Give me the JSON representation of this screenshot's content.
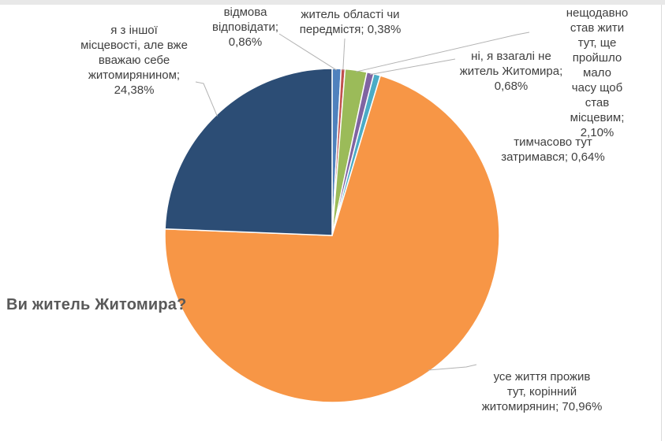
{
  "page": {
    "background": "#ffffff",
    "top_strip_color": "#e8e8e8",
    "right_border_color": "#dcdcdc"
  },
  "title": {
    "text": "Ви житель Житомира?",
    "color": "#595959"
  },
  "chart_data": {
    "type": "pie",
    "title": "Ви житель Житомира?",
    "start_angle_deg": 0,
    "direction": "clockwise",
    "legend": "none",
    "data_labels": "outside-with-leader-lines",
    "label_color": "#3f3f3f",
    "leader_line_color": "#b3b3b3",
    "slice_border_color": "#ffffff",
    "slices": [
      {
        "label": "відмова відповідати",
        "value": 0.86,
        "display": "0,86%",
        "color": "#4F81BD"
      },
      {
        "label": "житель області чи передмістя",
        "value": 0.38,
        "display": "0,38%",
        "color": "#C0504D"
      },
      {
        "label": "нещодавно став жити тут, ще пройшло мало часу щоб став місцевим",
        "value": 2.1,
        "display": "2,10%",
        "color": "#9BBB59"
      },
      {
        "label": "ні, я взагалі не житель Житомира",
        "value": 0.68,
        "display": "0,68%",
        "color": "#8064A2"
      },
      {
        "label": "тимчасово тут затримався",
        "value": 0.64,
        "display": "0,64%",
        "color": "#4BACC6"
      },
      {
        "label": "усе життя прожив тут, корінний житомирянин",
        "value": 70.96,
        "display": "70,96%",
        "color": "#F79646"
      },
      {
        "label": "я з іншої місцевості, але вже вважаю себе житомирянином",
        "value": 24.38,
        "display": "24,38%",
        "color": "#2C4D75"
      }
    ]
  },
  "callouts": [
    {
      "text": "відмова\nвідповідати;\n0,86%"
    },
    {
      "text": "житель області чи\nпередмістя; 0,38%"
    },
    {
      "text": "нещодавно став жити\nтут, ще пройшло мало\nчасу щоб став\nмісцевим; 2,10%"
    },
    {
      "text": "ні, я взагалі не\nжитель Житомира;\n0,68%"
    },
    {
      "text": "тимчасово тут\nзатримався; 0,64%"
    },
    {
      "text": "усе життя прожив\nтут, корінний\nжитомирянин; 70,96%"
    },
    {
      "text": "я з іншої\nмісцевості, але вже\nвважаю себе\nжитомирянином;\n24,38%"
    }
  ]
}
